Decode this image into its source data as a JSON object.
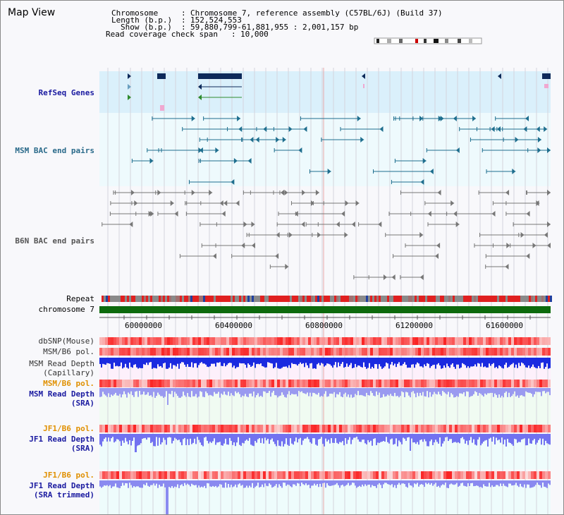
{
  "page": {
    "title": "Map View"
  },
  "header": {
    "chromosome_key": "Chromosome",
    "chromosome_value": "Chromosome 7, reference assembly (C57BL/6J) (Build 37)",
    "length_key": "Length (b.p.)",
    "length_value": "152,524,553",
    "show_key": "Show (b.p.)",
    "show_value": "59,880,799-61,881,955 : 2,001,157 bp",
    "coverage_key": "Read coverage check span",
    "coverage_value": "10,000"
  },
  "tracks": {
    "refseq": "RefSeq Genes",
    "msm_bac": "MSM BAC end pairs",
    "b6n_bac": "B6N BAC end pairs",
    "repeat": "Repeat",
    "chromosome": "chromosome 7",
    "dbsnp": "dbSNP(Mouse)",
    "msm_b6_pol_1": "MSM/B6 pol.",
    "msm_read_depth_cap": "MSM Read Depth\n(Capillary)",
    "msm_b6_pol_2": "MSM/B6 pol.",
    "msm_read_depth_sra": "MSM Read Depth\n(SRA)",
    "jf1_b6_pol_1": "JF1/B6 pol.",
    "jf1_read_depth_sra": "JF1 Read Depth\n(SRA)",
    "jf1_b6_pol_2": "JF1/B6 pol.",
    "jf1_read_depth_trimmed": "JF1 Read Depth\n(SRA trimmed)"
  },
  "axis": {
    "ticks": [
      "60000000",
      "60400000",
      "60800000",
      "61200000",
      "61600000"
    ],
    "range_bp": [
      59880799,
      61881955
    ]
  },
  "colors": {
    "refseq_bg": "#daf0fb",
    "msm_bg": "#eefafd",
    "gene": "#0d2a5a",
    "gene_green": "#2e8b2e",
    "msm_pair": "#1e6e8e",
    "b6n_pair": "#777777",
    "chromosome_bar": "#0d6a0d",
    "label_blue": "#1a1aa0",
    "label_orange": "#e09000",
    "label_teal": "#2a6a8a"
  }
}
